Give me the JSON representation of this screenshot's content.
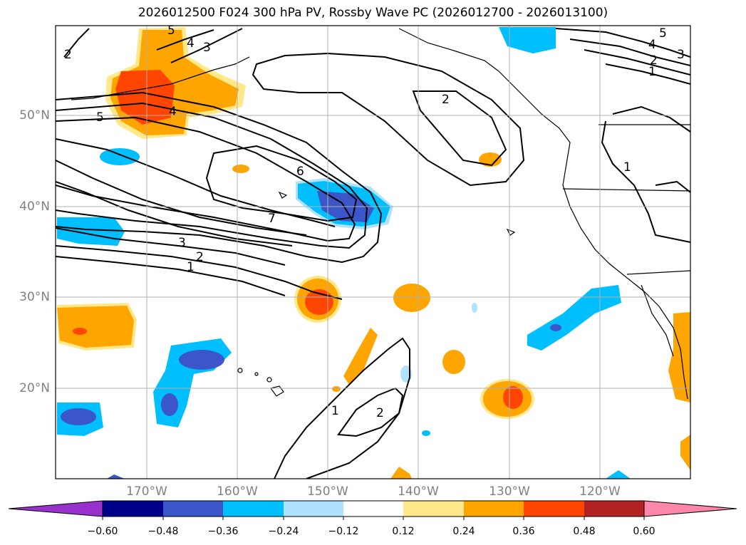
{
  "title": "2026012500 F024 300 hPa PV, Rossby Wave PC (2026012700 - 2026013100)",
  "lat_labels": [
    "50°N",
    "40°N",
    "30°N",
    "20°N"
  ],
  "lon_labels": [
    "170°W",
    "160°W",
    "150°W",
    "140°W",
    "130°W",
    "120°W"
  ],
  "colorbar": {
    "ticks": [
      "−0.60",
      "−0.48",
      "−0.36",
      "−0.24",
      "−0.12",
      "0.12",
      "0.24",
      "0.36",
      "0.48",
      "0.60"
    ],
    "colors": [
      "#9932cc",
      "#00008b",
      "#3a56c8",
      "#00bfff",
      "#b0e2ff",
      "#ffffff",
      "#ffe88a",
      "#ffa500",
      "#ff4500",
      "#b22222",
      "#ff88aa"
    ]
  },
  "contour_labels": [
    "2",
    "3",
    "4",
    "5",
    "5",
    "4",
    "6",
    "7",
    "3",
    "2",
    "1",
    "2",
    "5",
    "4",
    "3",
    "2",
    "1",
    "1",
    "2",
    "1"
  ]
}
